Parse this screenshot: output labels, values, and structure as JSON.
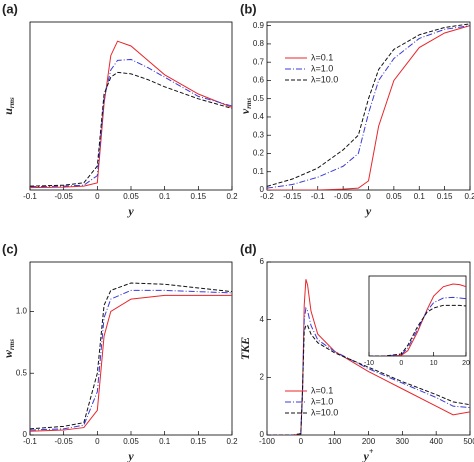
{
  "chart_data": [
    {
      "type": "line",
      "panel_label": "(a)",
      "xlabel": "y",
      "ylabel": "u",
      "ylabel_subscript": "rms",
      "xlim": [
        -0.1,
        0.2
      ],
      "xticks": [
        -0.1,
        -0.05,
        0,
        0.05,
        0.1,
        0.15,
        0.2
      ],
      "ylim": [
        0,
        3.5
      ],
      "x": [
        -0.1,
        -0.05,
        -0.02,
        0,
        0.01,
        0.02,
        0.03,
        0.05,
        0.075,
        0.1,
        0.15,
        0.2
      ],
      "series": [
        {
          "color": "#e8262a",
          "dash": "solid",
          "values": [
            0.05,
            0.06,
            0.08,
            0.15,
            1.8,
            2.8,
            3.1,
            3.0,
            2.7,
            2.4,
            2.0,
            1.72
          ]
        },
        {
          "color": "#3b3bd9",
          "dash": "dashdot",
          "values": [
            0.07,
            0.08,
            0.1,
            0.3,
            1.9,
            2.5,
            2.7,
            2.72,
            2.55,
            2.35,
            1.95,
            1.75
          ]
        },
        {
          "color": "#111111",
          "dash": "dashed",
          "values": [
            0.08,
            0.1,
            0.15,
            0.5,
            2.0,
            2.35,
            2.45,
            2.42,
            2.3,
            2.15,
            1.9,
            1.7
          ]
        }
      ]
    },
    {
      "type": "line",
      "panel_label": "(b)",
      "xlabel": "y",
      "ylabel": "v",
      "ylabel_subscript": "rms",
      "legend": "upper left",
      "xlim": [
        -0.2,
        0.2
      ],
      "xticks": [
        -0.2,
        -0.15,
        -0.1,
        -0.05,
        0,
        0.05,
        0.1,
        0.15,
        0.2
      ],
      "ylim": [
        0,
        0.92
      ],
      "yticks": [
        0,
        0.1,
        0.2,
        0.3,
        0.4,
        0.5,
        0.6,
        0.7,
        0.8,
        0.9
      ],
      "x": [
        -0.2,
        -0.15,
        -0.1,
        -0.05,
        -0.02,
        0,
        0.02,
        0.05,
        0.1,
        0.15,
        0.2
      ],
      "series": [
        {
          "name": "λ=0.1",
          "color": "#e8262a",
          "dash": "solid",
          "values": [
            0,
            0,
            0,
            0.005,
            0.01,
            0.05,
            0.35,
            0.6,
            0.78,
            0.86,
            0.9
          ]
        },
        {
          "name": "λ=1.0",
          "color": "#3b3bd9",
          "dash": "dashdot",
          "values": [
            0.01,
            0.03,
            0.07,
            0.13,
            0.2,
            0.42,
            0.6,
            0.72,
            0.83,
            0.88,
            0.9
          ]
        },
        {
          "name": "λ=10.0",
          "color": "#111111",
          "dash": "dashed",
          "values": [
            0.02,
            0.06,
            0.12,
            0.22,
            0.3,
            0.5,
            0.66,
            0.77,
            0.85,
            0.89,
            0.91
          ]
        }
      ]
    },
    {
      "type": "line",
      "panel_label": "(c)",
      "xlabel": "y",
      "ylabel": "w",
      "ylabel_subscript": "rms",
      "xlim": [
        -0.1,
        0.2
      ],
      "xticks": [
        -0.1,
        -0.05,
        0,
        0.05,
        0.1,
        0.15,
        0.2
      ],
      "ylim": [
        0,
        1.4
      ],
      "yticks": [
        0,
        0.5,
        {
          "value": 1,
          "label": "1.0"
        }
      ],
      "x": [
        -0.1,
        -0.05,
        -0.02,
        0,
        0.01,
        0.02,
        0.05,
        0.1,
        0.15,
        0.2
      ],
      "series": [
        {
          "color": "#e8262a",
          "dash": "solid",
          "values": [
            0.03,
            0.04,
            0.06,
            0.2,
            0.8,
            1.0,
            1.1,
            1.13,
            1.13,
            1.13
          ]
        },
        {
          "color": "#3b3bd9",
          "dash": "dashdot",
          "values": [
            0.04,
            0.05,
            0.08,
            0.35,
            0.95,
            1.1,
            1.17,
            1.17,
            1.16,
            1.15
          ]
        },
        {
          "color": "#111111",
          "dash": "dashed",
          "values": [
            0.05,
            0.07,
            0.1,
            0.5,
            1.05,
            1.17,
            1.23,
            1.22,
            1.19,
            1.16
          ]
        }
      ]
    },
    {
      "type": "line",
      "panel_label": "(d)",
      "xlabel": "y",
      "xlabel_superscript": "+",
      "ylabel": "TKE",
      "legend": "lower left",
      "xlim": [
        -100,
        500
      ],
      "xticks": [
        -100,
        0,
        100,
        200,
        300,
        400,
        500
      ],
      "ylim": [
        0,
        6
      ],
      "yticks": [
        0,
        2,
        4,
        6
      ],
      "x": [
        -100,
        -20,
        0,
        5,
        10,
        15,
        20,
        30,
        50,
        100,
        200,
        300,
        400,
        450,
        500
      ],
      "series": [
        {
          "name": "λ=0.1",
          "color": "#e8262a",
          "dash": "solid",
          "values": [
            0,
            0,
            0.05,
            1.5,
            4.5,
            5.4,
            5.2,
            4.3,
            3.5,
            2.9,
            2.2,
            1.6,
            1.0,
            0.7,
            0.8
          ]
        },
        {
          "name": "λ=1.0",
          "color": "#3b3bd9",
          "dash": "dashdot",
          "values": [
            0,
            0,
            0.05,
            1.5,
            4.0,
            4.4,
            4.3,
            3.8,
            3.3,
            2.9,
            2.3,
            1.8,
            1.3,
            1.0,
            0.95
          ]
        },
        {
          "name": "λ=10.0",
          "color": "#111111",
          "dash": "dashed",
          "values": [
            0,
            0,
            0.05,
            1.6,
            3.6,
            3.8,
            3.8,
            3.5,
            3.2,
            2.85,
            2.35,
            1.85,
            1.4,
            1.15,
            1.05
          ]
        }
      ]
    },
    {
      "type": "line",
      "xlim": [
        -10,
        20
      ],
      "xticks": [
        -10,
        0,
        10,
        20
      ],
      "ylim": [
        0,
        6
      ],
      "x": [
        -10,
        -5,
        0,
        2,
        5,
        8,
        10,
        13,
        16,
        18,
        20
      ],
      "series": [
        {
          "color": "#e8262a",
          "dash": "solid",
          "values": [
            0,
            0,
            0.05,
            0.4,
            1.8,
            3.5,
            4.5,
            5.2,
            5.4,
            5.35,
            5.2
          ]
        },
        {
          "color": "#3b3bd9",
          "dash": "dashdot",
          "values": [
            0,
            0,
            0.1,
            0.6,
            2.0,
            3.4,
            4.0,
            4.35,
            4.4,
            4.35,
            4.3
          ]
        },
        {
          "color": "#111111",
          "dash": "dashed",
          "values": [
            0,
            0,
            0.15,
            0.8,
            2.2,
            3.3,
            3.6,
            3.8,
            3.8,
            3.8,
            3.75
          ]
        }
      ]
    }
  ]
}
